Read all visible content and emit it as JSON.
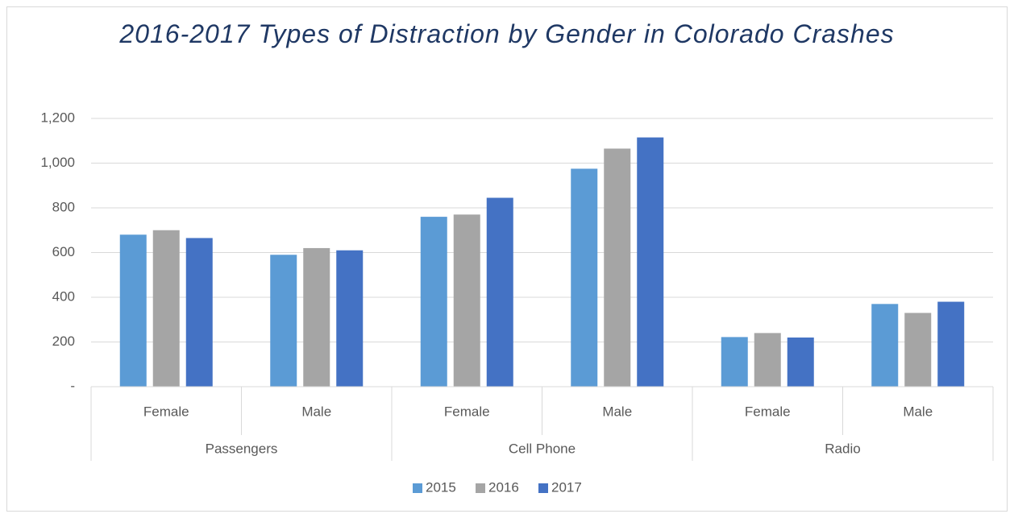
{
  "chart_data": {
    "type": "bar",
    "title": "2016-2017 Types of Distraction by Gender in Colorado Crashes",
    "categories": [
      "Female",
      "Male",
      "Female",
      "Male",
      "Female",
      "Male"
    ],
    "category_groups": [
      "Passengers",
      "Cell Phone",
      "Radio"
    ],
    "series": [
      {
        "name": "2015",
        "color": "#5b9bd5",
        "values": [
          680,
          590,
          760,
          975,
          222,
          370
        ]
      },
      {
        "name": "2016",
        "color": "#a5a5a5",
        "values": [
          700,
          620,
          770,
          1065,
          240,
          330
        ]
      },
      {
        "name": "2017",
        "color": "#4472c4",
        "values": [
          665,
          610,
          845,
          1115,
          220,
          380
        ]
      }
    ],
    "ylim": [
      0,
      1200
    ],
    "yticks": [
      {
        "value": 0,
        "label": "-"
      },
      200,
      400,
      600,
      800,
      {
        "value": 1000,
        "label": "1,000"
      },
      {
        "value": 1200,
        "label": "1,200"
      }
    ],
    "grid": true,
    "legend": "bottom"
  }
}
